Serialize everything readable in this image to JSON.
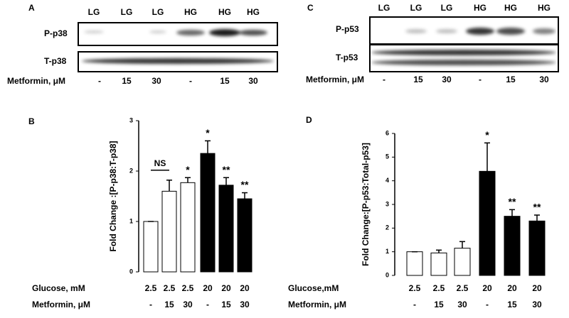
{
  "blots": [
    {
      "panel": "A",
      "lanes": [
        "LG",
        "LG",
        "LG",
        "HG",
        "HG",
        "HG"
      ],
      "rows": [
        "P-p38",
        "T-p38"
      ],
      "treatment_label": "Metformin, μM",
      "treatment": [
        "-",
        "15",
        "30",
        "-",
        "15",
        "30"
      ]
    },
    {
      "panel": "C",
      "lanes": [
        "LG",
        "LG",
        "LG",
        "HG",
        "HG",
        "HG"
      ],
      "rows": [
        "P-p53",
        "T-p53"
      ],
      "treatment_label": "Metformin, μM",
      "treatment": [
        "-",
        "15",
        "30",
        "-",
        "15",
        "30"
      ]
    }
  ],
  "chart_data": [
    {
      "type": "bar",
      "panel": "B",
      "ylabel": "Fold Change :[P-p38:T-p38]",
      "values": [
        1,
        1.6,
        1.77,
        2.35,
        1.72,
        1.45
      ],
      "errors": [
        0,
        0.22,
        0.1,
        0.25,
        0.15,
        0.12
      ],
      "colors": [
        "#ffffff",
        "#ffffff",
        "#ffffff",
        "#000000",
        "#000000",
        "#000000"
      ],
      "annotations": [
        {
          "index": 2,
          "text": "*"
        },
        {
          "index": 3,
          "text": "*"
        },
        {
          "index": 4,
          "text": "**"
        },
        {
          "index": 5,
          "text": "**"
        }
      ],
      "bracket": {
        "from": 0,
        "to": 1,
        "text": "NS"
      },
      "ylim": [
        0,
        3
      ],
      "yticks": [
        0,
        1,
        2,
        3
      ],
      "row_labels": [
        {
          "label": "Glucose, mM",
          "values": [
            "2.5",
            "2.5",
            "2.5",
            "20",
            "20",
            "20"
          ]
        },
        {
          "label": "Metformin, μM",
          "values": [
            "-",
            "15",
            "30",
            "-",
            "15",
            "30"
          ]
        }
      ]
    },
    {
      "type": "bar",
      "panel": "D",
      "ylabel": "Fold Change:[P-p53:Total-p53]",
      "values": [
        1,
        0.95,
        1.15,
        4.4,
        2.5,
        2.3
      ],
      "errors": [
        0,
        0.12,
        0.28,
        1.2,
        0.28,
        0.25
      ],
      "colors": [
        "#ffffff",
        "#ffffff",
        "#ffffff",
        "#000000",
        "#000000",
        "#000000"
      ],
      "annotations": [
        {
          "index": 3,
          "text": "*"
        },
        {
          "index": 4,
          "text": "**"
        },
        {
          "index": 5,
          "text": "**"
        }
      ],
      "ylim": [
        0,
        6
      ],
      "yticks": [
        0,
        1,
        2,
        3,
        4,
        5,
        6
      ],
      "row_labels": [
        {
          "label": "Glucose,mM",
          "values": [
            "2.5",
            "2.5",
            "2.5",
            "20",
            "20",
            "20"
          ]
        },
        {
          "label": "Metformin, μM",
          "values": [
            "-",
            "15",
            "30",
            "-",
            "15",
            "30"
          ]
        }
      ]
    }
  ]
}
